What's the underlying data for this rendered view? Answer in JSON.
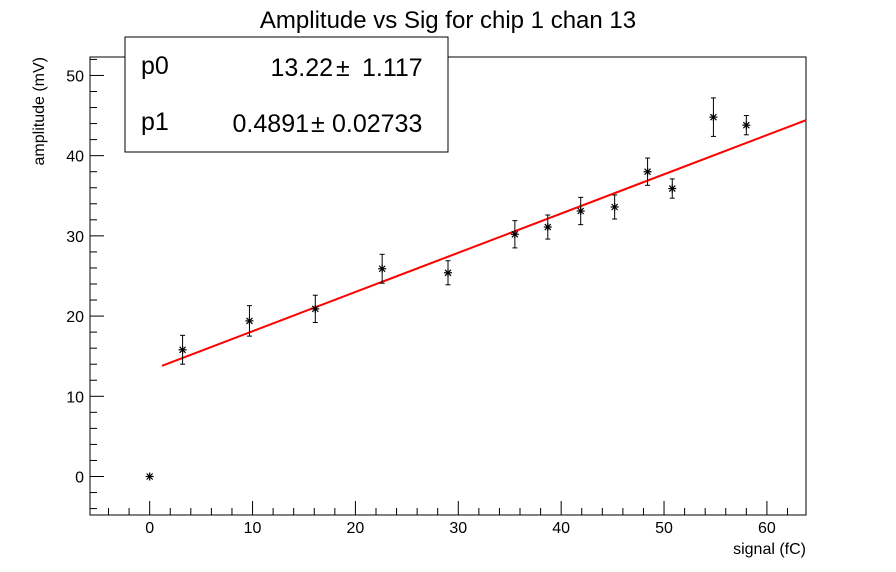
{
  "chart_data": {
    "type": "scatter",
    "title": "Amplitude vs Sig for chip 1 chan 13",
    "xlabel": "signal (fC)",
    "ylabel": "amplitude (mV)",
    "xlim": [
      -5.8,
      63.8
    ],
    "ylim": [
      -4.8,
      52.3
    ],
    "xticks": [
      0,
      10,
      20,
      30,
      40,
      50,
      60
    ],
    "yticks": [
      0,
      10,
      20,
      30,
      40,
      50
    ],
    "grid": false,
    "marker_color": "#000000",
    "fit_color": "#ff0000",
    "points": [
      {
        "x": 0.0,
        "y": 0.0,
        "err": 0
      },
      {
        "x": 3.2,
        "y": 15.8,
        "err": 1.8
      },
      {
        "x": 9.7,
        "y": 19.4,
        "err": 1.9
      },
      {
        "x": 16.1,
        "y": 20.9,
        "err": 1.7
      },
      {
        "x": 22.6,
        "y": 25.9,
        "err": 1.8
      },
      {
        "x": 29.0,
        "y": 25.4,
        "err": 1.5
      },
      {
        "x": 35.5,
        "y": 30.2,
        "err": 1.7
      },
      {
        "x": 38.7,
        "y": 31.1,
        "err": 1.5
      },
      {
        "x": 41.9,
        "y": 33.1,
        "err": 1.7
      },
      {
        "x": 45.2,
        "y": 33.6,
        "err": 1.5
      },
      {
        "x": 48.4,
        "y": 38.0,
        "err": 1.7
      },
      {
        "x": 50.8,
        "y": 35.9,
        "err": 1.2
      },
      {
        "x": 54.8,
        "y": 44.8,
        "err": 2.4
      },
      {
        "x": 58.0,
        "y": 43.8,
        "err": 1.2
      }
    ],
    "fit": {
      "p0": 13.22,
      "p1": 0.4891,
      "x_start": 1.2,
      "x_end": 63.8
    },
    "stats": [
      {
        "name": "p0",
        "value": "13.22",
        "pm": "±",
        "error": "1.117"
      },
      {
        "name": "p1",
        "value": "0.4891",
        "pm": "±",
        "error": "0.02733"
      }
    ]
  }
}
